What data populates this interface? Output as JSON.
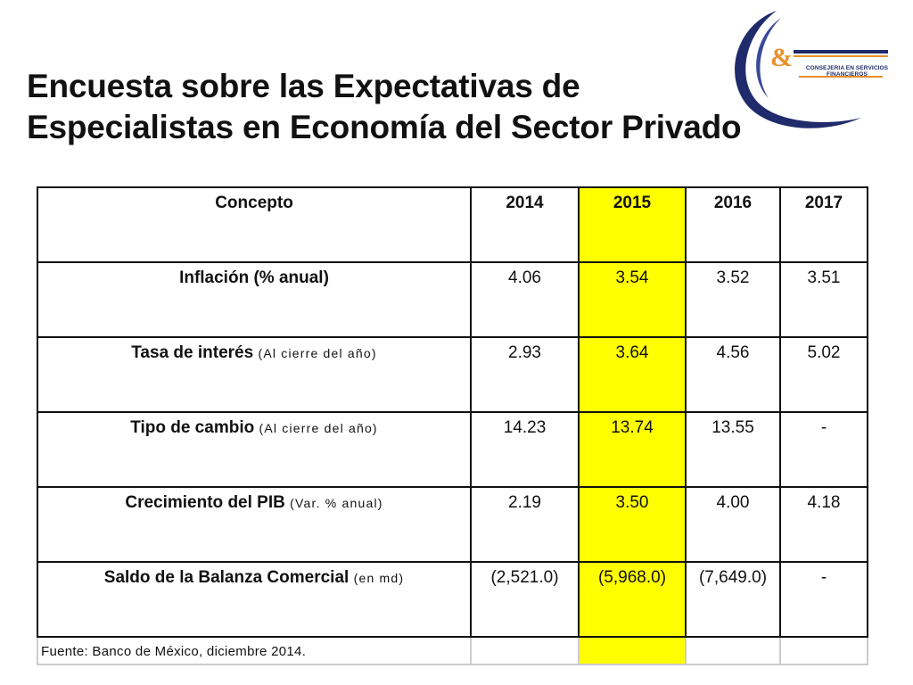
{
  "title": {
    "line1": "Encuesta  sobre las Expectativas de",
    "line2": "Especialistas en Economía del Sector Privado"
  },
  "logo": {
    "symbol": "&",
    "line1": "CONSEJERIA EN SERVICIOS",
    "line2": "FINANCIEROS",
    "colors": {
      "navy": "#1f2b6b",
      "orange": "#e8912a"
    }
  },
  "table": {
    "highlight_color": "#ffff00",
    "headers": [
      "Concepto",
      "2014",
      "2015",
      "2016",
      "2017"
    ],
    "rows": [
      {
        "concept": "Inflación (% anual)",
        "note": "",
        "values": [
          "4.06",
          "3.54",
          "3.52",
          "3.51"
        ]
      },
      {
        "concept": "Tasa de interés",
        "note": "(Al cierre del año)",
        "values": [
          "2.93",
          "3.64",
          "4.56",
          "5.02"
        ]
      },
      {
        "concept": "Tipo de cambio",
        "note": "(Al cierre del año)",
        "values": [
          "14.23",
          "13.74",
          "13.55",
          "-"
        ]
      },
      {
        "concept": "Crecimiento del PIB",
        "note": "(Var. % anual)",
        "values": [
          "2.19",
          "3.50",
          "4.00",
          "4.18"
        ]
      },
      {
        "concept": "Saldo de la Balanza Comercial",
        "note": "(en md)",
        "values": [
          "(2,521.0)",
          "(5,968.0)",
          "(7,649.0)",
          "-"
        ]
      }
    ],
    "source": "Fuente: Banco de México, diciembre 2014."
  }
}
